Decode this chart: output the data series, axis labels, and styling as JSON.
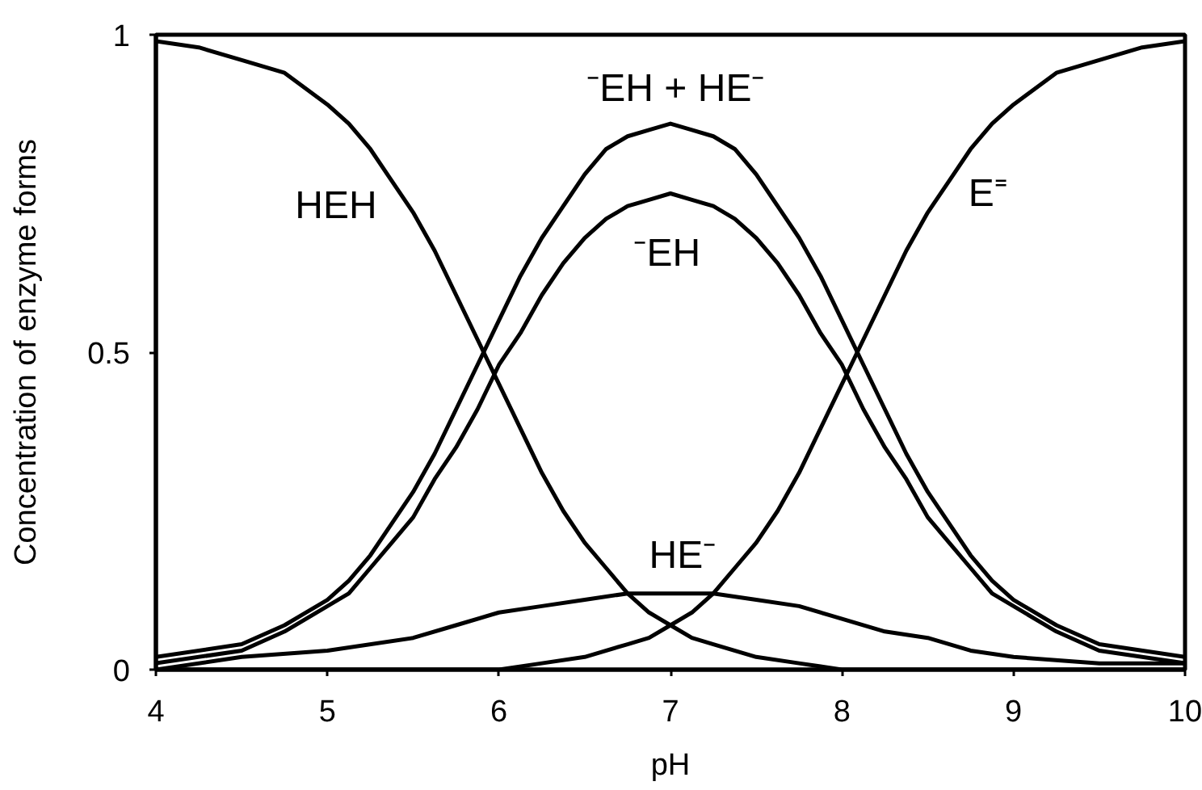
{
  "chart_data": {
    "type": "line",
    "xlabel": "pH",
    "ylabel": "Concentration of enzyme forms",
    "x": [
      4,
      4.5,
      4.75,
      5,
      5.125,
      5.25,
      5.375,
      5.5,
      5.625,
      5.75,
      5.875,
      6,
      6.125,
      6.25,
      6.375,
      6.5,
      6.625,
      6.75,
      6.875,
      7,
      7.125,
      7.25,
      7.375,
      7.5,
      7.625,
      7.75,
      7.875,
      8,
      8.125,
      8.25,
      8.375,
      8.5,
      8.625,
      8.75,
      8.875,
      9,
      9.25,
      9.5,
      10
    ],
    "series": [
      {
        "name": "HEH",
        "color": "#000000",
        "x": [
          4,
          4.25,
          4.5,
          4.75,
          5,
          5.125,
          5.25,
          5.375,
          5.5,
          5.625,
          5.75,
          5.875,
          6,
          6.125,
          6.25,
          6.375,
          6.5,
          6.625,
          6.75,
          6.875,
          7,
          7.125,
          7.25,
          7.5,
          7.75,
          8,
          9,
          10
        ],
        "values": [
          0.99,
          0.98,
          0.96,
          0.94,
          0.89,
          0.86,
          0.82,
          0.77,
          0.72,
          0.66,
          0.59,
          0.52,
          0.45,
          0.38,
          0.31,
          0.25,
          0.2,
          0.16,
          0.12,
          0.09,
          0.07,
          0.05,
          0.04,
          0.02,
          0.01,
          0,
          0,
          0
        ]
      },
      {
        "name": "⁻EH + HE⁻",
        "color": "#000000",
        "values": [
          0.02,
          0.04,
          0.07,
          0.11,
          0.14,
          0.18,
          0.23,
          0.28,
          0.34,
          0.41,
          0.48,
          0.55,
          0.62,
          0.68,
          0.73,
          0.78,
          0.82,
          0.84,
          0.85,
          0.86,
          0.85,
          0.84,
          0.82,
          0.78,
          0.73,
          0.68,
          0.62,
          0.55,
          0.48,
          0.41,
          0.34,
          0.28,
          0.23,
          0.18,
          0.14,
          0.11,
          0.07,
          0.04,
          0.02
        ]
      },
      {
        "name": "⁻EH",
        "color": "#000000",
        "values": [
          0.01,
          0.03,
          0.06,
          0.1,
          0.12,
          0.16,
          0.2,
          0.24,
          0.3,
          0.35,
          0.41,
          0.48,
          0.53,
          0.59,
          0.64,
          0.68,
          0.71,
          0.73,
          0.74,
          0.75,
          0.74,
          0.73,
          0.71,
          0.68,
          0.64,
          0.59,
          0.53,
          0.48,
          0.41,
          0.35,
          0.3,
          0.24,
          0.2,
          0.16,
          0.12,
          0.1,
          0.06,
          0.03,
          0.01
        ]
      },
      {
        "name": "HE⁻",
        "color": "#000000",
        "x": [
          4,
          4.5,
          5,
          5.5,
          5.75,
          6,
          6.25,
          6.5,
          6.75,
          7,
          7.25,
          7.5,
          7.75,
          8,
          8.25,
          8.5,
          8.75,
          9,
          9.5,
          10
        ],
        "values": [
          0,
          0.02,
          0.03,
          0.05,
          0.07,
          0.09,
          0.1,
          0.11,
          0.12,
          0.12,
          0.12,
          0.11,
          0.1,
          0.08,
          0.06,
          0.05,
          0.03,
          0.02,
          0.01,
          0.01
        ]
      },
      {
        "name": "E⁼",
        "color": "#000000",
        "x": [
          4,
          5,
          6,
          6.25,
          6.5,
          6.75,
          6.875,
          7,
          7.125,
          7.25,
          7.375,
          7.5,
          7.625,
          7.75,
          7.875,
          8,
          8.125,
          8.25,
          8.375,
          8.5,
          8.625,
          8.75,
          8.875,
          9,
          9.25,
          9.5,
          9.75,
          10
        ],
        "values": [
          0,
          0,
          0,
          0.01,
          0.02,
          0.04,
          0.05,
          0.07,
          0.09,
          0.12,
          0.16,
          0.2,
          0.25,
          0.31,
          0.38,
          0.45,
          0.52,
          0.59,
          0.66,
          0.72,
          0.77,
          0.82,
          0.86,
          0.89,
          0.94,
          0.96,
          0.98,
          0.99
        ]
      }
    ],
    "xlim": [
      4,
      10
    ],
    "ylim": [
      0,
      1
    ],
    "xticks": [
      4,
      5,
      6,
      7,
      8,
      9,
      10
    ],
    "yticks": [
      0,
      0.5,
      1
    ],
    "grid": false,
    "line_style": "solid"
  }
}
